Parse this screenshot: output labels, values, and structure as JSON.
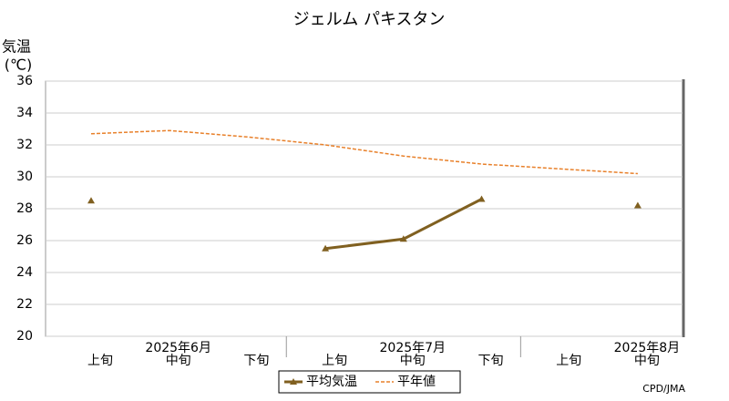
{
  "chart_data": {
    "type": "line",
    "title": "ジェルム パキスタン",
    "y_label": [
      "気温",
      "(℃)"
    ],
    "categories": [
      "上旬",
      "中旬",
      "下旬",
      "上旬",
      "中旬",
      "下旬",
      "上旬",
      "中旬"
    ],
    "month_labels": [
      "2025年6月",
      "2025年7月",
      "2025年8月"
    ],
    "series": [
      {
        "name": "平均気温",
        "color": "#806020",
        "style": "solid",
        "marker": "triangle",
        "values": [
          28.5,
          null,
          null,
          25.5,
          26.1,
          28.6,
          null,
          28.2
        ]
      },
      {
        "name": "平年値",
        "color": "#e8802a",
        "style": "dashed",
        "values": [
          32.7,
          32.9,
          32.5,
          32.0,
          31.3,
          30.8,
          30.5,
          30.2
        ]
      }
    ],
    "ylim": [
      20,
      36
    ],
    "yticks": [
      20,
      22,
      24,
      26,
      28,
      30,
      32,
      34,
      36
    ],
    "grid": true,
    "source": "CPD/JMA"
  }
}
